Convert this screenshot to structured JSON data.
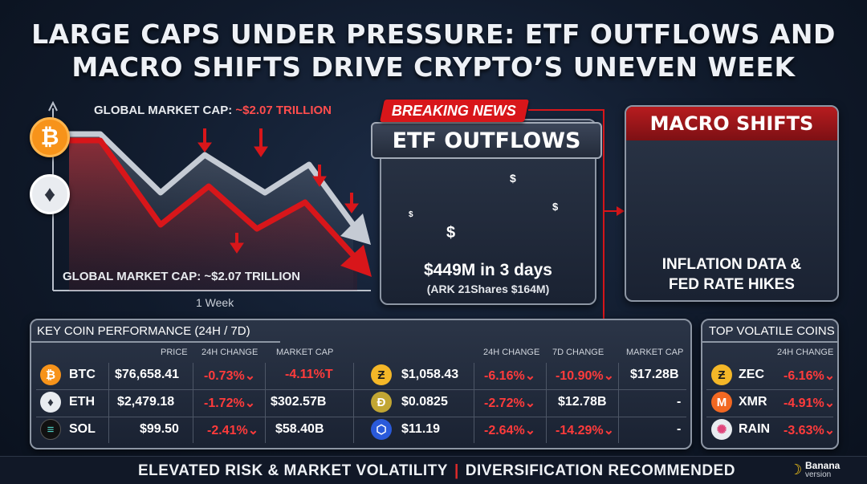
{
  "title": {
    "line1": "LARGE CAPS UNDER PRESSURE: ETF OUTFLOWS AND",
    "line2": "MACRO SHIFTS DRIVE CRYPTO’S UNEVEN WEEK"
  },
  "chart": {
    "label_top_prefix": "GLOBAL MARKET CAP: ",
    "label_top_value": "~$2.07 TRILLION",
    "label_bottom": "GLOBAL MARKET CAP: ~$2.07 TRILLION",
    "x_label": "1 Week",
    "coins": [
      "btc-icon",
      "eth-icon"
    ],
    "colors": {
      "red": "#d8161a",
      "gray": "#c5cbd4"
    }
  },
  "etf": {
    "badge": "BREAKING NEWS",
    "heading": "ETF OUTFLOWS",
    "stat": "$449M in 3 days",
    "sub": "(ARK 21Shares $164M)",
    "coin_symbol": "$"
  },
  "macro": {
    "heading": "MACRO SHIFTS",
    "text_line1": "INFLATION DATA &",
    "text_line2": "FED RATE HIKES"
  },
  "performance": {
    "title": "KEY COIN PERFORMANCE (24H / 7D)",
    "left_headers": [
      "PRICE",
      "24H CHANGE",
      "MARKET CAP"
    ],
    "right_headers": [
      "24H CHANGE",
      "7D CHANGE",
      "MARKET CAP"
    ],
    "left_rows": [
      {
        "symbol": "BTC",
        "icon": "bitcoin-icon",
        "price": "$76,658.41",
        "change": "-0.73%⌄",
        "extra": "-4.11%T"
      },
      {
        "symbol": "ETH",
        "icon": "ethereum-icon",
        "price": "$2,479.18",
        "change": "-1.72%⌄",
        "extra": "$302.57B"
      },
      {
        "symbol": "SOL",
        "icon": "solana-icon",
        "price": "$99.50",
        "change": "-2.41%⌄",
        "extra": "$58.40B"
      }
    ],
    "right_rows": [
      {
        "icon": "zcash-icon",
        "price": "$1,058.43",
        "change24": "-6.16%⌄",
        "change7": "-10.90%⌄",
        "cap": "$17.28B"
      },
      {
        "icon": "dogecoin-icon",
        "price": "$0.0825",
        "change24": "-2.72%⌄",
        "change7": "$12.78B",
        "cap": "-"
      },
      {
        "icon": "chainlink-icon",
        "price": "$11.19",
        "change24": "-2.64%⌄",
        "change7": "-14.29%⌄",
        "cap": "-"
      }
    ]
  },
  "volatile": {
    "title": "TOP VOLATILE COINS",
    "header": "24H CHANGE",
    "rows": [
      {
        "symbol": "ZEC",
        "icon": "zcash-icon",
        "change": "-6.16%⌄"
      },
      {
        "symbol": "XMR",
        "icon": "monero-icon",
        "change": "-4.91%⌄"
      },
      {
        "symbol": "RAIN",
        "icon": "rain-icon",
        "change": "-3.63%⌄"
      }
    ]
  },
  "footer": {
    "left": "ELEVATED RISK & MARKET VOLATILITY",
    "divider": "|",
    "right": "DIVERSIFICATION RECOMMENDED"
  },
  "brand": {
    "name": "Banana",
    "sub": "version"
  }
}
